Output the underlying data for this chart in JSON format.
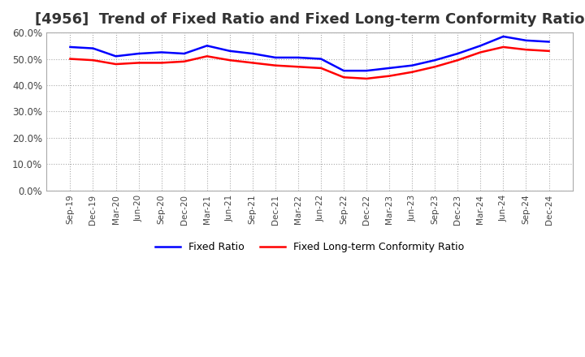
{
  "title": "[4956]  Trend of Fixed Ratio and Fixed Long-term Conformity Ratio",
  "x_labels": [
    "Sep-19",
    "Dec-19",
    "Mar-20",
    "Jun-20",
    "Sep-20",
    "Dec-20",
    "Mar-21",
    "Jun-21",
    "Sep-21",
    "Dec-21",
    "Mar-22",
    "Jun-22",
    "Sep-22",
    "Dec-22",
    "Mar-23",
    "Jun-23",
    "Sep-23",
    "Dec-23",
    "Mar-24",
    "Jun-24",
    "Sep-24",
    "Dec-24"
  ],
  "fixed_ratio": [
    54.5,
    54.0,
    51.0,
    52.0,
    52.5,
    52.0,
    55.0,
    53.0,
    52.0,
    50.5,
    50.5,
    50.0,
    45.5,
    45.5,
    46.5,
    47.5,
    49.5,
    52.0,
    55.0,
    58.5,
    57.0,
    56.5
  ],
  "fixed_lt_ratio": [
    50.0,
    49.5,
    48.0,
    48.5,
    48.5,
    49.0,
    51.0,
    49.5,
    48.5,
    47.5,
    47.0,
    46.5,
    43.0,
    42.5,
    43.5,
    45.0,
    47.0,
    49.5,
    52.5,
    54.5,
    53.5,
    53.0
  ],
  "fixed_ratio_color": "#0000FF",
  "fixed_lt_ratio_color": "#FF0000",
  "ylim": [
    0,
    60
  ],
  "yticks": [
    0.0,
    10.0,
    20.0,
    30.0,
    40.0,
    50.0,
    60.0
  ],
  "background_color": "#FFFFFF",
  "grid_color": "#AAAAAA",
  "title_fontsize": 13,
  "legend_labels": [
    "Fixed Ratio",
    "Fixed Long-term Conformity Ratio"
  ]
}
